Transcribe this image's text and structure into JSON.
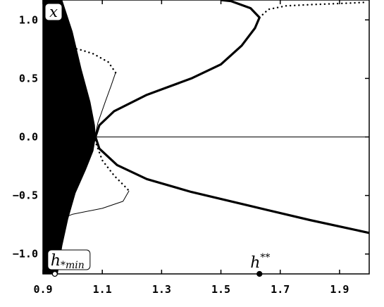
{
  "chart_data": {
    "type": "line",
    "xlim": [
      0.9,
      2.0
    ],
    "ylim": [
      -1.17,
      1.17
    ],
    "xticks": [
      0.9,
      1.1,
      1.3,
      1.5,
      1.7,
      1.9
    ],
    "xtick_labels": [
      "0.9",
      "1.1",
      "1.3",
      "1.5",
      "1.7",
      "1.9"
    ],
    "yticks": [
      1.0,
      0.5,
      0.0,
      -0.5,
      -1.0
    ],
    "ytick_labels": [
      "1.0",
      "0.5",
      "0.0",
      "−0.5",
      "−1.0"
    ],
    "grid": false,
    "legend": "none",
    "ylabel": "x",
    "annotations": [
      {
        "label": "h",
        "sub": "*min",
        "x": 0.94
      },
      {
        "label": "h",
        "sup": "**",
        "x": 1.63
      }
    ],
    "series": [
      {
        "style": "filled-region",
        "points_upper": [
          [
            0.9,
            1.17
          ],
          [
            0.965,
            1.17
          ],
          [
            1.0,
            0.9
          ],
          [
            1.03,
            0.58
          ],
          [
            1.06,
            0.3
          ],
          [
            1.075,
            0.1
          ],
          [
            1.078,
            0.0
          ]
        ],
        "points_lower": [
          [
            1.078,
            0.0
          ],
          [
            1.07,
            -0.12
          ],
          [
            1.045,
            -0.28
          ],
          [
            1.01,
            -0.48
          ],
          [
            0.985,
            -0.7
          ],
          [
            0.965,
            -0.93
          ],
          [
            0.95,
            -1.17
          ],
          [
            0.9,
            -1.17
          ]
        ]
      },
      {
        "style": "thick-solid",
        "points": [
          [
            2.0,
            -0.82
          ],
          [
            1.8,
            -0.71
          ],
          [
            1.6,
            -0.59
          ],
          [
            1.4,
            -0.47
          ],
          [
            1.25,
            -0.36
          ],
          [
            1.15,
            -0.24
          ],
          [
            1.09,
            -0.1
          ],
          [
            1.077,
            0.0
          ],
          [
            1.09,
            0.1
          ],
          [
            1.14,
            0.22
          ],
          [
            1.25,
            0.36
          ],
          [
            1.4,
            0.5
          ],
          [
            1.5,
            0.62
          ],
          [
            1.57,
            0.78
          ],
          [
            1.615,
            0.93
          ],
          [
            1.63,
            1.02
          ],
          [
            1.6,
            1.1
          ],
          [
            1.535,
            1.16
          ],
          [
            1.5,
            1.17
          ]
        ]
      },
      {
        "style": "thin-solid",
        "points": [
          [
            1.077,
            0.0
          ],
          [
            2.0,
            0.0
          ]
        ]
      },
      {
        "style": "dotted",
        "points": [
          [
            1.63,
            1.02
          ],
          [
            1.66,
            1.09
          ],
          [
            1.72,
            1.12
          ],
          [
            1.8,
            1.13
          ],
          [
            1.9,
            1.14
          ],
          [
            1.99,
            1.15
          ]
        ]
      },
      {
        "style": "thin-solid",
        "points": [
          [
            1.075,
            0.0
          ],
          [
            1.085,
            0.12
          ],
          [
            1.11,
            0.3
          ],
          [
            1.13,
            0.44
          ],
          [
            1.145,
            0.55
          ]
        ]
      },
      {
        "style": "dotted",
        "points": [
          [
            1.145,
            0.55
          ],
          [
            1.12,
            0.64
          ],
          [
            1.07,
            0.71
          ],
          [
            1.02,
            0.75
          ],
          [
            0.985,
            0.76
          ]
        ]
      },
      {
        "style": "dotted",
        "points": [
          [
            1.075,
            -0.03
          ],
          [
            1.1,
            -0.2
          ],
          [
            1.14,
            -0.33
          ],
          [
            1.175,
            -0.42
          ],
          [
            1.19,
            -0.46
          ]
        ]
      },
      {
        "style": "thin-solid",
        "points": [
          [
            1.19,
            -0.46
          ],
          [
            1.17,
            -0.55
          ],
          [
            1.1,
            -0.61
          ],
          [
            1.0,
            -0.66
          ],
          [
            0.94,
            -0.72
          ]
        ]
      }
    ]
  }
}
